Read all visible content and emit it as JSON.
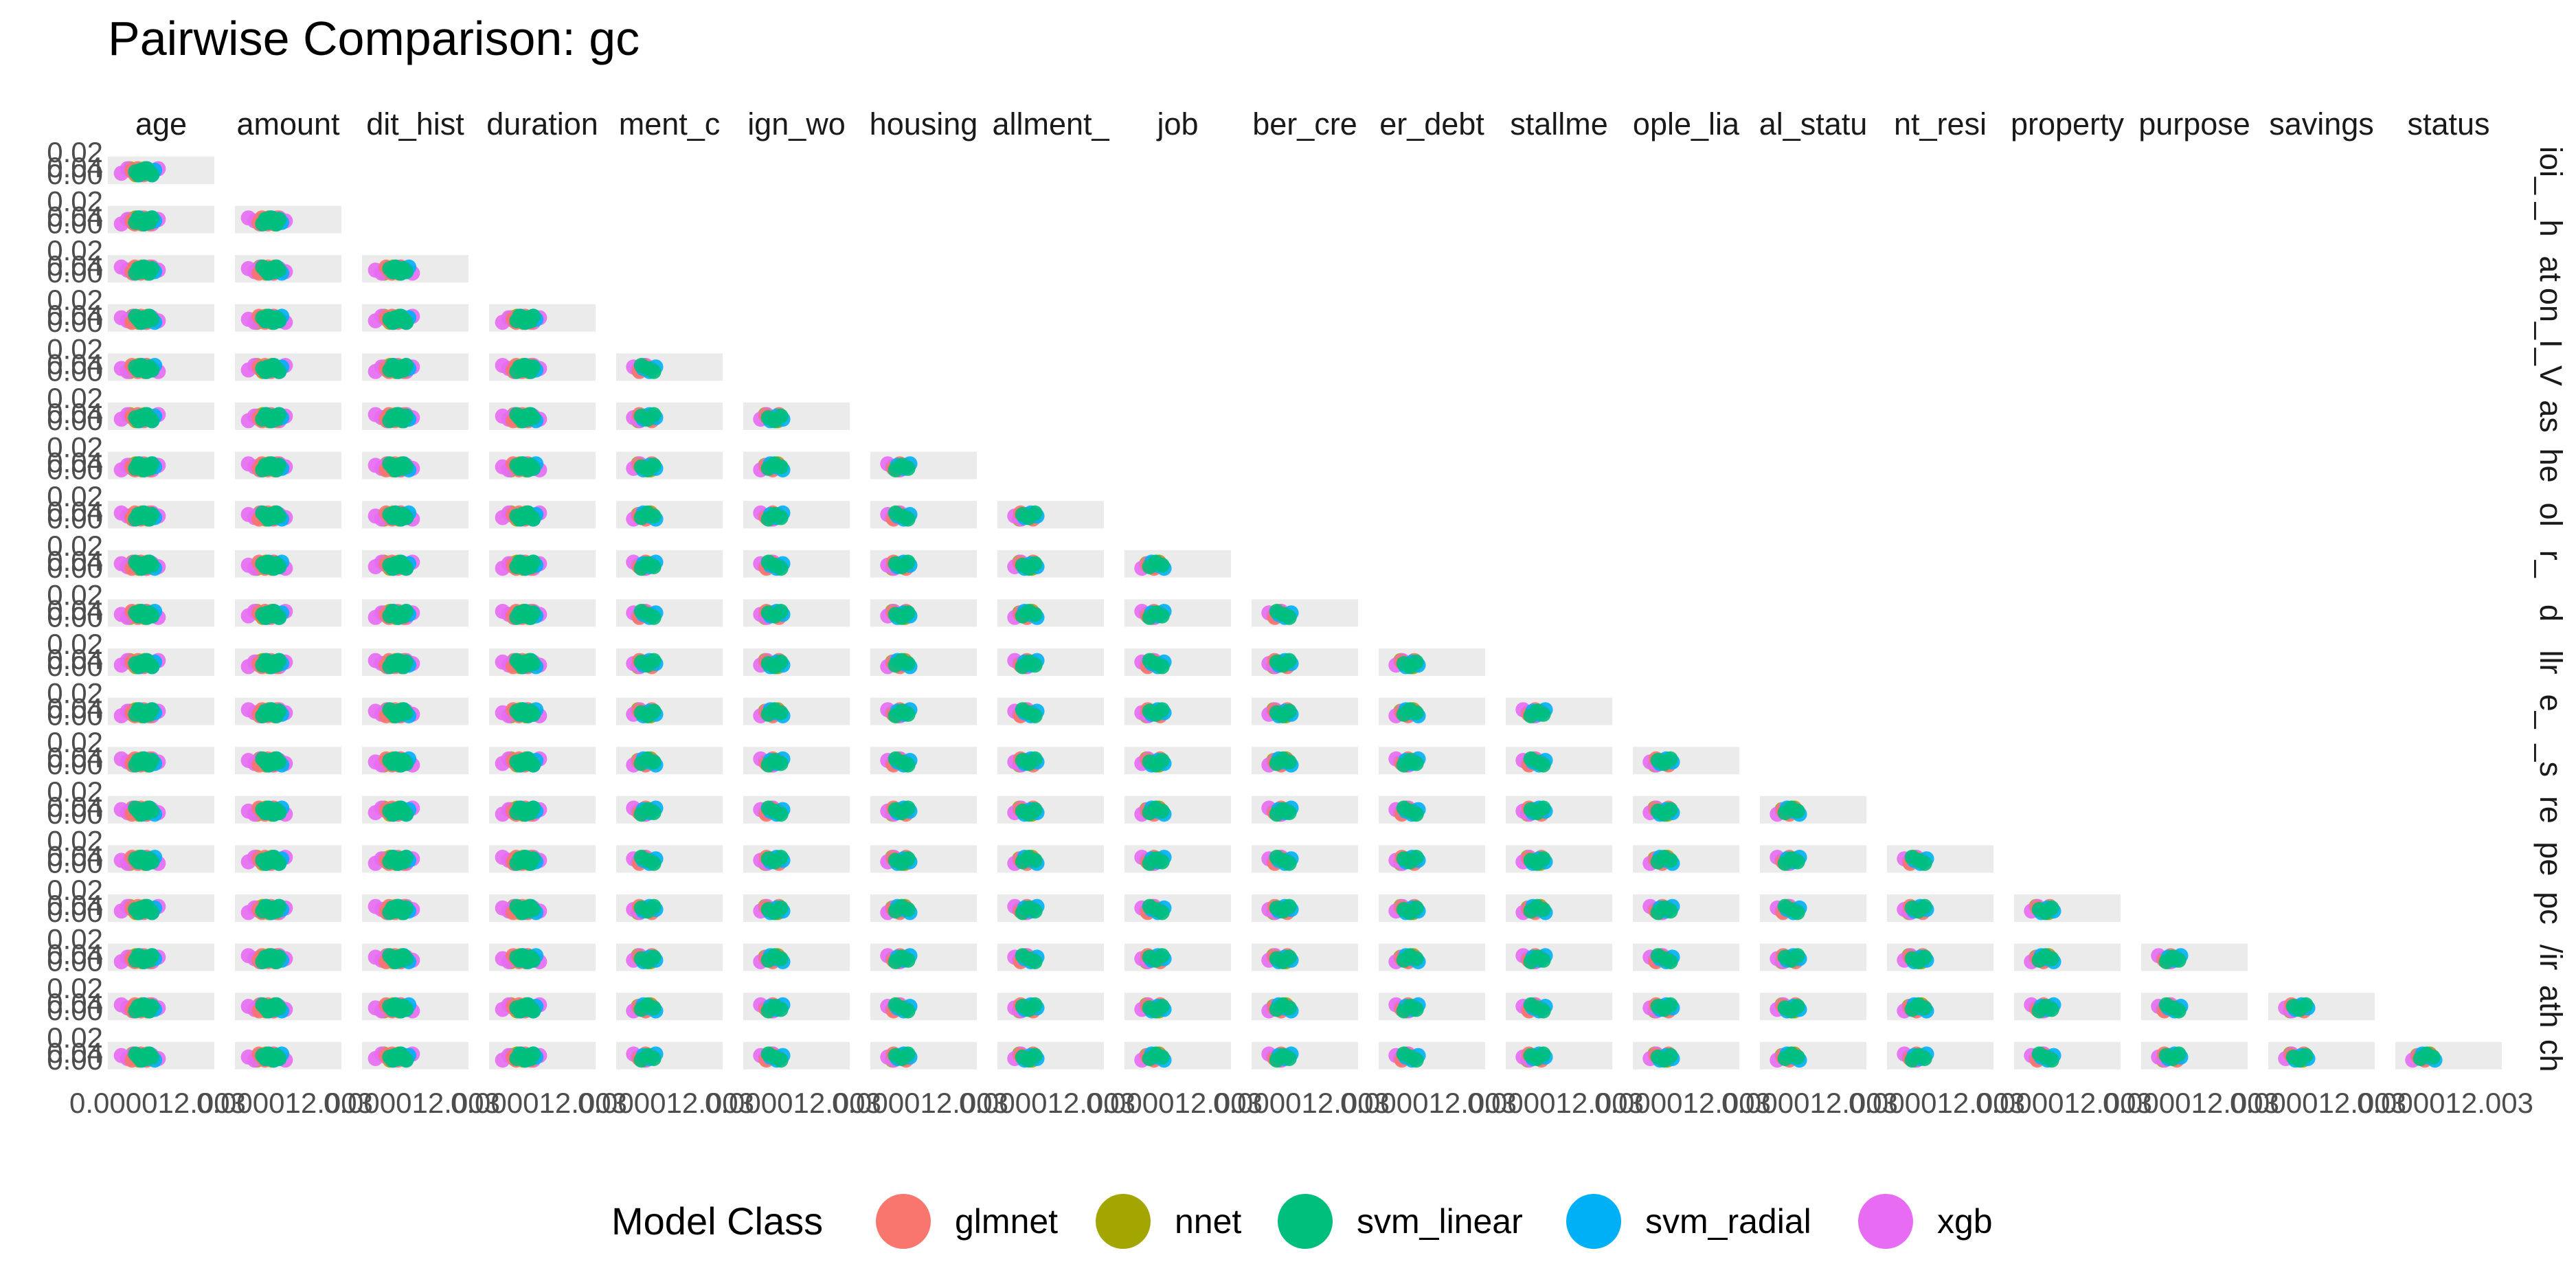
{
  "chart_data": {
    "type": "scatter",
    "title": "Pairwise Comparison: gc",
    "layout": "lower-triangular facet grid",
    "column_strips": [
      "age",
      "amount",
      "dit_hist",
      "duration",
      "ment_c",
      "ign_wo",
      "housing",
      "allment_",
      "job",
      "ber_cre",
      "er_debt",
      "stallme",
      "ople_lia",
      "al_statu",
      "nt_resi",
      "property",
      "purpose",
      "savings",
      "status"
    ],
    "row_strips": [
      "ioi_",
      "_h",
      "at",
      "on_I",
      "_V",
      "as",
      "he",
      "ol",
      "r_",
      "d",
      "llr",
      "e_",
      "_s",
      "re",
      "pe",
      "pc",
      "/ir",
      "ath",
      "ch"
    ],
    "y_ticks": [
      "0.02",
      "0.04",
      "0.00"
    ],
    "x_ticks": [
      "0.000",
      "0.001",
      "0.002",
      "0.003"
    ],
    "x_tick_text": "0.000012.003",
    "xlim": [
      0,
      0.003
    ],
    "ylim": [
      0,
      0.04
    ],
    "legend": {
      "title": "Model Class",
      "position": "bottom",
      "entries": [
        {
          "name": "glmnet",
          "color": "#F8766D"
        },
        {
          "name": "nnet",
          "color": "#A3A500"
        },
        {
          "name": "svm_linear",
          "color": "#00BF7D"
        },
        {
          "name": "svm_radial",
          "color": "#00B0F6"
        },
        {
          "name": "xgb",
          "color": "#E76BF3"
        }
      ]
    },
    "series_columns": {
      "glmnet": [
        0.00068,
        0.00118
      ],
      "nnet": [
        0.00062,
        0.00112
      ],
      "svm_linear": [
        0.00078,
        0.00124
      ],
      "svm_radial": [
        0.00088,
        0.00132
      ],
      "xgb": [
        0.00038,
        0.00142
      ]
    },
    "panel_background": "#ebebeb",
    "grid": false
  }
}
